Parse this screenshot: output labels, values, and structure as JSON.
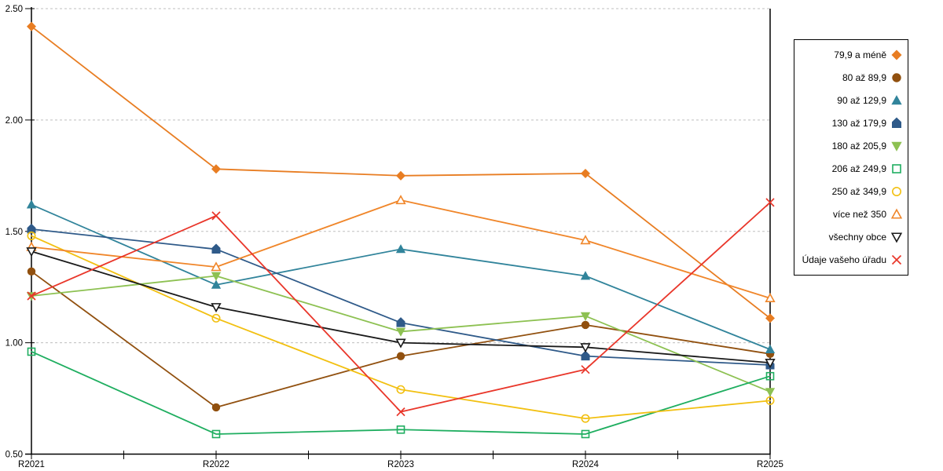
{
  "chart_data": {
    "type": "line",
    "title": "",
    "xlabel": "",
    "ylabel": "",
    "categories": [
      "R2021",
      "R2022",
      "R2023",
      "R2024",
      "R2025"
    ],
    "series": [
      {
        "name": "79,9 a méně",
        "color": "#E87D22",
        "marker": "diamond",
        "style": "solid",
        "values": [
          2.42,
          1.78,
          1.75,
          1.76,
          1.11
        ]
      },
      {
        "name": "80 až 89,9",
        "color": "#91500F",
        "marker": "circle",
        "style": "solid",
        "values": [
          1.32,
          0.71,
          0.94,
          1.08,
          0.95
        ]
      },
      {
        "name": "90 až 129,9",
        "color": "#31849B",
        "marker": "triangle-up",
        "style": "solid",
        "values": [
          1.62,
          1.26,
          1.42,
          1.3,
          0.97
        ]
      },
      {
        "name": "130 až 179,9",
        "color": "#2F5A89",
        "marker": "pentagon",
        "style": "solid",
        "values": [
          1.51,
          1.42,
          1.09,
          0.94,
          0.9
        ]
      },
      {
        "name": "180 až 205,9",
        "color": "#8DC152",
        "marker": "triangle-down",
        "style": "solid",
        "values": [
          1.21,
          1.3,
          1.05,
          1.12,
          0.78
        ]
      },
      {
        "name": "206 až 249,9",
        "color": "#1FAE60",
        "marker": "square",
        "style": "open",
        "values": [
          0.96,
          0.59,
          0.61,
          0.59,
          0.85
        ]
      },
      {
        "name": "250 až 349,9",
        "color": "#F2C011",
        "marker": "circle",
        "style": "open",
        "values": [
          1.48,
          1.11,
          0.79,
          0.66,
          0.74
        ]
      },
      {
        "name": "více než 350",
        "color": "#F0862A",
        "marker": "triangle-up",
        "style": "open",
        "values": [
          1.43,
          1.34,
          1.64,
          1.46,
          1.2
        ]
      },
      {
        "name": "všechny obce",
        "color": "#1A1A1A",
        "marker": "triangle-down",
        "style": "open",
        "values": [
          1.41,
          1.16,
          1.0,
          0.98,
          0.91
        ]
      },
      {
        "name": "Údaje vašeho úřadu",
        "color": "#E9362A",
        "marker": "x",
        "style": "open",
        "values": [
          1.21,
          1.57,
          0.69,
          0.88,
          1.63
        ]
      }
    ],
    "y_axis": {
      "min": 0.5,
      "max": 2.5,
      "tick_values": [
        0.5,
        1.0,
        1.5,
        2.0,
        2.5
      ],
      "tick_labels": [
        "0.50",
        "1.00",
        "1.50",
        "2.00",
        "2.50"
      ]
    },
    "x_axis": {
      "tick_labels": [
        "R2021",
        "R2022",
        "R2023",
        "R2024",
        "R2025"
      ],
      "minor_ticks_between_categories": true
    },
    "grid": {
      "horizontal": "dashed",
      "color": "#BFBFBF"
    },
    "legend_position": "right"
  }
}
